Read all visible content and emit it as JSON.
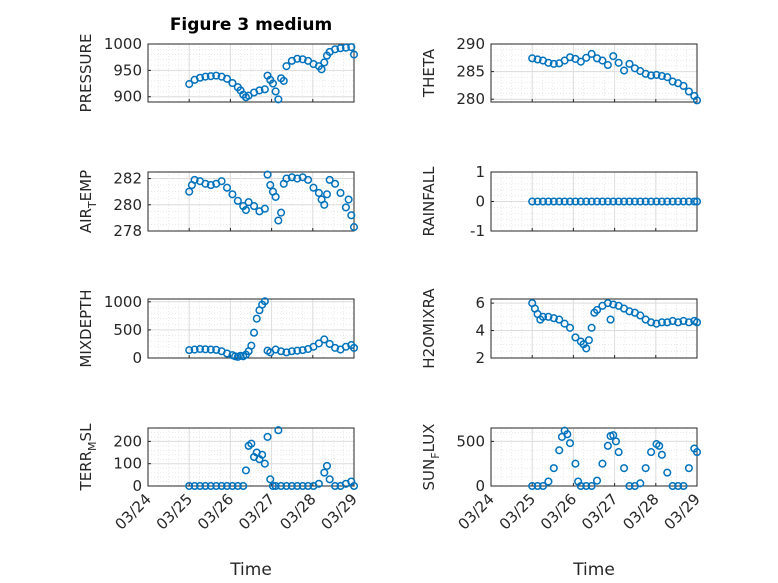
{
  "figure_title": "Figure 3 medium",
  "x_axis_title": "Time",
  "x_tick_labels": [
    "03/24",
    "03/25",
    "03/26",
    "03/27",
    "03/28",
    "03/29"
  ],
  "colors": {
    "marker": "#0072BD",
    "axis": "#262626",
    "grid": "#dcdcdc"
  },
  "chart_data": [
    {
      "type": "scatter",
      "ylabel": "PRESSURE",
      "ylim": [
        890,
        1000
      ],
      "yticks": [
        900,
        950,
        1000
      ],
      "minor_yticks": [
        910,
        920,
        930,
        940,
        960,
        970,
        980,
        990
      ],
      "x_start": "03/24",
      "x_end": "03/29",
      "points": [
        [
          0.0,
          924
        ],
        [
          0.1,
          932
        ],
        [
          0.2,
          936
        ],
        [
          0.3,
          938
        ],
        [
          0.4,
          939
        ],
        [
          0.5,
          940
        ],
        [
          0.6,
          938
        ],
        [
          0.7,
          934
        ],
        [
          0.8,
          926
        ],
        [
          0.9,
          918
        ],
        [
          0.95,
          912
        ],
        [
          1.0,
          904
        ],
        [
          1.05,
          899
        ],
        [
          1.1,
          902
        ],
        [
          1.2,
          908
        ],
        [
          1.3,
          912
        ],
        [
          1.4,
          914
        ],
        [
          1.45,
          940
        ],
        [
          1.5,
          932
        ],
        [
          1.55,
          925
        ],
        [
          1.6,
          910
        ],
        [
          1.65,
          895
        ],
        [
          1.7,
          935
        ],
        [
          1.75,
          930
        ],
        [
          1.8,
          958
        ],
        [
          1.9,
          968
        ],
        [
          2.0,
          972
        ],
        [
          2.1,
          971
        ],
        [
          2.2,
          968
        ],
        [
          2.3,
          962
        ],
        [
          2.4,
          958
        ],
        [
          2.45,
          952
        ],
        [
          2.5,
          965
        ],
        [
          2.55,
          978
        ],
        [
          2.6,
          985
        ],
        [
          2.7,
          990
        ],
        [
          2.8,
          992
        ],
        [
          2.9,
          993
        ],
        [
          3.0,
          994
        ],
        [
          3.05,
          980
        ]
      ]
    },
    {
      "type": "scatter",
      "ylabel": "THETA",
      "ylim": [
        279.5,
        290
      ],
      "yticks": [
        280,
        285,
        290
      ],
      "minor_yticks": [
        281,
        282,
        283,
        284,
        286,
        287,
        288,
        289
      ],
      "x_start": "03/24",
      "x_end": "03/29",
      "points": [
        [
          0.0,
          287.4
        ],
        [
          0.1,
          287.2
        ],
        [
          0.2,
          287.0
        ],
        [
          0.3,
          286.6
        ],
        [
          0.4,
          286.4
        ],
        [
          0.5,
          286.5
        ],
        [
          0.6,
          287.0
        ],
        [
          0.7,
          287.6
        ],
        [
          0.8,
          287.3
        ],
        [
          0.9,
          286.8
        ],
        [
          1.0,
          287.5
        ],
        [
          1.1,
          288.2
        ],
        [
          1.2,
          287.4
        ],
        [
          1.3,
          287.0
        ],
        [
          1.4,
          286.2
        ],
        [
          1.5,
          287.8
        ],
        [
          1.6,
          286.6
        ],
        [
          1.7,
          285.2
        ],
        [
          1.8,
          286.4
        ],
        [
          1.9,
          285.6
        ],
        [
          2.0,
          285.1
        ],
        [
          2.1,
          284.6
        ],
        [
          2.2,
          284.3
        ],
        [
          2.3,
          284.4
        ],
        [
          2.4,
          284.2
        ],
        [
          2.5,
          284.0
        ],
        [
          2.6,
          283.2
        ],
        [
          2.7,
          282.9
        ],
        [
          2.8,
          282.4
        ],
        [
          2.9,
          281.4
        ],
        [
          3.0,
          280.6
        ],
        [
          3.05,
          279.8
        ]
      ]
    },
    {
      "type": "scatter",
      "ylabel": "AIR_TEMP",
      "ylim": [
        278,
        282.5
      ],
      "yticks": [
        278,
        280,
        282
      ],
      "minor_yticks": [
        278.5,
        279,
        279.5,
        280.5,
        281,
        281.5,
        282.5
      ],
      "x_start": "03/24",
      "x_end": "03/29",
      "points": [
        [
          0.0,
          281.0
        ],
        [
          0.05,
          281.5
        ],
        [
          0.1,
          281.9
        ],
        [
          0.2,
          281.8
        ],
        [
          0.3,
          281.6
        ],
        [
          0.4,
          281.5
        ],
        [
          0.5,
          281.6
        ],
        [
          0.6,
          281.8
        ],
        [
          0.7,
          281.3
        ],
        [
          0.8,
          280.8
        ],
        [
          0.9,
          280.3
        ],
        [
          1.0,
          279.9
        ],
        [
          1.05,
          279.6
        ],
        [
          1.1,
          280.2
        ],
        [
          1.2,
          279.9
        ],
        [
          1.3,
          279.5
        ],
        [
          1.4,
          279.7
        ],
        [
          1.45,
          282.3
        ],
        [
          1.5,
          281.5
        ],
        [
          1.55,
          281.0
        ],
        [
          1.6,
          280.6
        ],
        [
          1.65,
          278.8
        ],
        [
          1.7,
          279.4
        ],
        [
          1.75,
          281.6
        ],
        [
          1.8,
          282.0
        ],
        [
          1.9,
          282.1
        ],
        [
          2.0,
          282.0
        ],
        [
          2.1,
          282.1
        ],
        [
          2.2,
          281.9
        ],
        [
          2.3,
          281.3
        ],
        [
          2.4,
          280.9
        ],
        [
          2.45,
          280.4
        ],
        [
          2.5,
          280.0
        ],
        [
          2.55,
          280.8
        ],
        [
          2.6,
          281.9
        ],
        [
          2.7,
          281.6
        ],
        [
          2.8,
          280.9
        ],
        [
          2.9,
          279.8
        ],
        [
          2.95,
          280.4
        ],
        [
          3.0,
          279.2
        ],
        [
          3.05,
          278.3
        ]
      ]
    },
    {
      "type": "scatter",
      "ylabel": "RAINFALL",
      "ylim": [
        -1,
        1
      ],
      "yticks": [
        -1,
        0,
        1
      ],
      "minor_yticks": [
        -0.8,
        -0.6,
        -0.4,
        -0.2,
        0.2,
        0.4,
        0.6,
        0.8
      ],
      "x_start": "03/24",
      "x_end": "03/29",
      "points": [
        [
          0.0,
          0
        ],
        [
          0.1,
          0
        ],
        [
          0.2,
          0
        ],
        [
          0.3,
          0
        ],
        [
          0.4,
          0
        ],
        [
          0.5,
          0
        ],
        [
          0.6,
          0
        ],
        [
          0.7,
          0
        ],
        [
          0.8,
          0
        ],
        [
          0.9,
          0
        ],
        [
          1.0,
          0
        ],
        [
          1.1,
          0
        ],
        [
          1.2,
          0
        ],
        [
          1.3,
          0
        ],
        [
          1.4,
          0
        ],
        [
          1.5,
          0
        ],
        [
          1.6,
          0
        ],
        [
          1.7,
          0
        ],
        [
          1.8,
          0
        ],
        [
          1.9,
          0
        ],
        [
          2.0,
          0
        ],
        [
          2.1,
          0
        ],
        [
          2.2,
          0
        ],
        [
          2.3,
          0
        ],
        [
          2.4,
          0
        ],
        [
          2.5,
          0
        ],
        [
          2.6,
          0
        ],
        [
          2.7,
          0
        ],
        [
          2.8,
          0
        ],
        [
          2.9,
          0
        ],
        [
          3.0,
          0
        ],
        [
          3.05,
          0
        ]
      ]
    },
    {
      "type": "scatter",
      "ylabel": "MIXDEPTH",
      "ylim": [
        0,
        1050
      ],
      "yticks": [
        0,
        500,
        1000
      ],
      "minor_yticks": [
        100,
        200,
        300,
        400,
        600,
        700,
        800,
        900
      ],
      "x_start": "03/24",
      "x_end": "03/29",
      "points": [
        [
          0.0,
          140
        ],
        [
          0.1,
          150
        ],
        [
          0.2,
          160
        ],
        [
          0.3,
          155
        ],
        [
          0.4,
          150
        ],
        [
          0.5,
          145
        ],
        [
          0.6,
          120
        ],
        [
          0.7,
          80
        ],
        [
          0.8,
          50
        ],
        [
          0.85,
          30
        ],
        [
          0.9,
          20
        ],
        [
          0.95,
          40
        ],
        [
          1.0,
          30
        ],
        [
          1.05,
          60
        ],
        [
          1.1,
          120
        ],
        [
          1.15,
          220
        ],
        [
          1.2,
          450
        ],
        [
          1.25,
          700
        ],
        [
          1.3,
          850
        ],
        [
          1.35,
          950
        ],
        [
          1.4,
          1010
        ],
        [
          1.45,
          130
        ],
        [
          1.5,
          100
        ],
        [
          1.6,
          150
        ],
        [
          1.7,
          120
        ],
        [
          1.8,
          100
        ],
        [
          1.9,
          120
        ],
        [
          2.0,
          130
        ],
        [
          2.1,
          140
        ],
        [
          2.2,
          160
        ],
        [
          2.3,
          200
        ],
        [
          2.4,
          260
        ],
        [
          2.5,
          330
        ],
        [
          2.6,
          250
        ],
        [
          2.7,
          180
        ],
        [
          2.8,
          150
        ],
        [
          2.9,
          200
        ],
        [
          3.0,
          230
        ],
        [
          3.05,
          180
        ]
      ]
    },
    {
      "type": "scatter",
      "ylabel": "H2OMIXRA",
      "ylim": [
        2,
        6.3
      ],
      "yticks": [
        2,
        4,
        6
      ],
      "minor_yticks": [
        2.5,
        3,
        3.5,
        4.5,
        5,
        5.5
      ],
      "x_start": "03/24",
      "x_end": "03/29",
      "points": [
        [
          0.0,
          6.0
        ],
        [
          0.05,
          5.6
        ],
        [
          0.1,
          5.2
        ],
        [
          0.15,
          4.8
        ],
        [
          0.2,
          5.0
        ],
        [
          0.3,
          5.0
        ],
        [
          0.4,
          4.9
        ],
        [
          0.5,
          4.8
        ],
        [
          0.6,
          4.5
        ],
        [
          0.7,
          4.2
        ],
        [
          0.8,
          3.5
        ],
        [
          0.9,
          3.2
        ],
        [
          0.95,
          3.0
        ],
        [
          1.0,
          2.7
        ],
        [
          1.05,
          3.3
        ],
        [
          1.1,
          4.2
        ],
        [
          1.15,
          5.3
        ],
        [
          1.2,
          5.5
        ],
        [
          1.3,
          5.8
        ],
        [
          1.4,
          6.0
        ],
        [
          1.45,
          4.8
        ],
        [
          1.5,
          5.9
        ],
        [
          1.6,
          5.8
        ],
        [
          1.7,
          5.6
        ],
        [
          1.8,
          5.4
        ],
        [
          1.9,
          5.3
        ],
        [
          2.0,
          5.1
        ],
        [
          2.1,
          4.8
        ],
        [
          2.2,
          4.6
        ],
        [
          2.3,
          4.5
        ],
        [
          2.4,
          4.6
        ],
        [
          2.5,
          4.6
        ],
        [
          2.6,
          4.7
        ],
        [
          2.7,
          4.6
        ],
        [
          2.8,
          4.7
        ],
        [
          2.9,
          4.6
        ],
        [
          3.0,
          4.7
        ],
        [
          3.05,
          4.6
        ]
      ]
    },
    {
      "type": "scatter",
      "ylabel": "TERR_MSL",
      "ylim": [
        0,
        260
      ],
      "yticks": [
        0,
        100,
        200
      ],
      "minor_yticks": [
        20,
        40,
        60,
        80,
        120,
        140,
        160,
        180,
        220,
        240
      ],
      "x_start": "03/24",
      "x_end": "03/29",
      "points": [
        [
          0.0,
          0
        ],
        [
          0.1,
          0
        ],
        [
          0.2,
          0
        ],
        [
          0.3,
          0
        ],
        [
          0.4,
          0
        ],
        [
          0.5,
          0
        ],
        [
          0.6,
          0
        ],
        [
          0.7,
          0
        ],
        [
          0.8,
          0
        ],
        [
          0.9,
          0
        ],
        [
          1.0,
          0
        ],
        [
          1.05,
          70
        ],
        [
          1.1,
          180
        ],
        [
          1.15,
          190
        ],
        [
          1.2,
          130
        ],
        [
          1.25,
          150
        ],
        [
          1.3,
          120
        ],
        [
          1.35,
          140
        ],
        [
          1.4,
          100
        ],
        [
          1.45,
          220
        ],
        [
          1.5,
          30
        ],
        [
          1.55,
          0
        ],
        [
          1.6,
          0
        ],
        [
          1.65,
          250
        ],
        [
          1.7,
          0
        ],
        [
          1.8,
          0
        ],
        [
          1.9,
          0
        ],
        [
          2.0,
          0
        ],
        [
          2.1,
          0
        ],
        [
          2.2,
          0
        ],
        [
          2.3,
          0
        ],
        [
          2.4,
          10
        ],
        [
          2.5,
          60
        ],
        [
          2.55,
          90
        ],
        [
          2.6,
          30
        ],
        [
          2.7,
          0
        ],
        [
          2.8,
          0
        ],
        [
          2.9,
          10
        ],
        [
          3.0,
          20
        ],
        [
          3.05,
          0
        ]
      ]
    },
    {
      "type": "scatter",
      "ylabel": "SUN_FLUX",
      "ylim": [
        0,
        650
      ],
      "yticks": [
        0,
        500
      ],
      "minor_yticks": [
        100,
        200,
        300,
        400,
        600
      ],
      "x_start": "03/24",
      "x_end": "03/29",
      "points": [
        [
          0.0,
          0
        ],
        [
          0.1,
          0
        ],
        [
          0.2,
          0
        ],
        [
          0.3,
          50
        ],
        [
          0.4,
          200
        ],
        [
          0.5,
          400
        ],
        [
          0.55,
          550
        ],
        [
          0.6,
          620
        ],
        [
          0.65,
          580
        ],
        [
          0.7,
          480
        ],
        [
          0.8,
          250
        ],
        [
          0.85,
          50
        ],
        [
          0.9,
          0
        ],
        [
          1.0,
          0
        ],
        [
          1.1,
          0
        ],
        [
          1.2,
          60
        ],
        [
          1.3,
          250
        ],
        [
          1.4,
          450
        ],
        [
          1.45,
          560
        ],
        [
          1.5,
          570
        ],
        [
          1.55,
          500
        ],
        [
          1.6,
          380
        ],
        [
          1.7,
          200
        ],
        [
          1.8,
          0
        ],
        [
          1.9,
          0
        ],
        [
          2.0,
          30
        ],
        [
          2.1,
          200
        ],
        [
          2.2,
          380
        ],
        [
          2.3,
          470
        ],
        [
          2.35,
          450
        ],
        [
          2.4,
          350
        ],
        [
          2.5,
          150
        ],
        [
          2.6,
          0
        ],
        [
          2.7,
          0
        ],
        [
          2.8,
          0
        ],
        [
          2.9,
          200
        ],
        [
          3.0,
          420
        ],
        [
          3.05,
          380
        ]
      ]
    }
  ]
}
